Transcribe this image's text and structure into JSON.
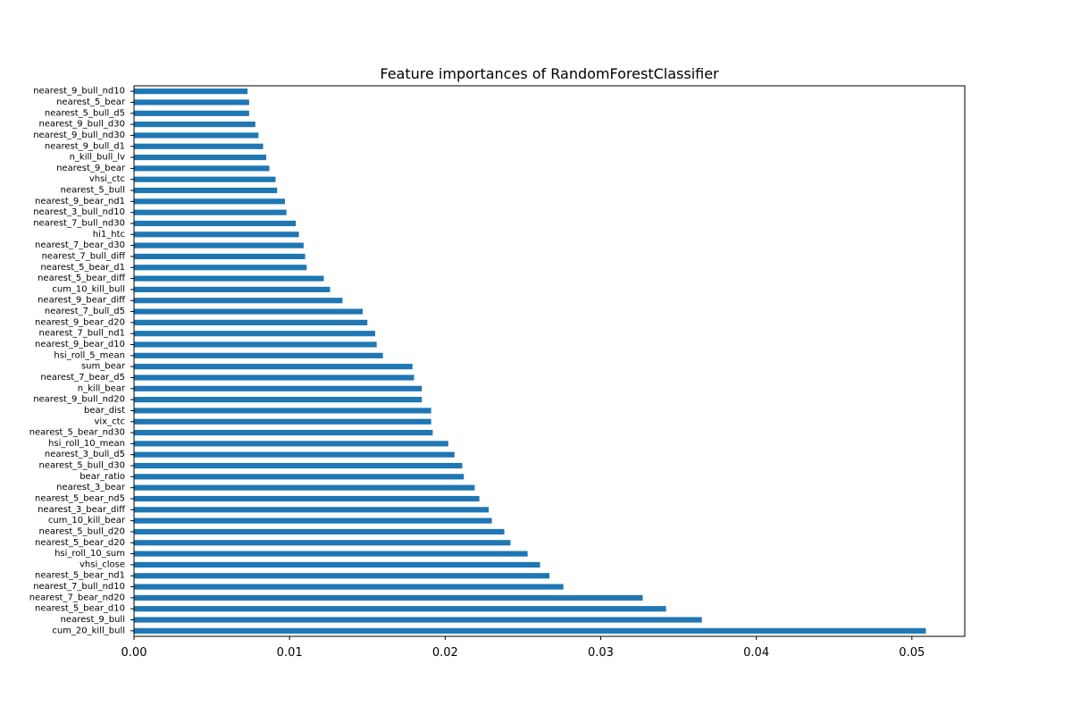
{
  "chart_data": {
    "type": "bar",
    "orientation": "horizontal",
    "title": "Feature importances of RandomForestClassifier",
    "xlabel": "",
    "ylabel": "",
    "xlim": [
      0,
      0.0534
    ],
    "xticks": [
      0.0,
      0.01,
      0.02,
      0.03,
      0.04,
      0.05
    ],
    "xtick_labels": [
      "0.00",
      "0.01",
      "0.02",
      "0.03",
      "0.04",
      "0.05"
    ],
    "bar_color": "#1f77b4",
    "grid": false,
    "categories": [
      "cum_20_kill_bull",
      "nearest_9_bull",
      "nearest_5_bear_d10",
      "nearest_7_bear_nd20",
      "nearest_7_bull_nd10",
      "nearest_5_bear_nd1",
      "vhsi_close",
      "hsi_roll_10_sum",
      "nearest_5_bear_d20",
      "nearest_5_bull_d20",
      "cum_10_kill_bear",
      "nearest_3_bear_diff",
      "nearest_5_bear_nd5",
      "nearest_3_bear",
      "bear_ratio",
      "nearest_5_bull_d30",
      "nearest_3_bull_d5",
      "hsi_roll_10_mean",
      "nearest_5_bear_nd30",
      "vix_ctc",
      "bear_dist",
      "nearest_9_bull_nd20",
      "n_kill_bear",
      "nearest_7_bear_d5",
      "sum_bear",
      "hsi_roll_5_mean",
      "nearest_9_bear_d10",
      "nearest_7_bull_nd1",
      "nearest_9_bear_d20",
      "nearest_7_bull_d5",
      "nearest_9_bear_diff",
      "cum_10_kill_bull",
      "nearest_5_bear_diff",
      "nearest_5_bear_d1",
      "nearest_7_bull_diff",
      "nearest_7_bear_d30",
      "hi1_htc",
      "nearest_7_bull_nd30",
      "nearest_3_bull_nd10",
      "nearest_9_bear_nd1",
      "nearest_5_bull",
      "vhsi_ctc",
      "nearest_9_bear",
      "n_kill_bull_lv",
      "nearest_9_bull_d1",
      "nearest_9_bull_nd30",
      "nearest_9_bull_d30",
      "nearest_5_bull_d5",
      "nearest_5_bear",
      "nearest_9_bull_nd10"
    ],
    "values": [
      0.0509,
      0.0365,
      0.0342,
      0.0327,
      0.0276,
      0.0267,
      0.0261,
      0.0253,
      0.0242,
      0.0238,
      0.023,
      0.0228,
      0.0222,
      0.0219,
      0.0212,
      0.0211,
      0.0206,
      0.0202,
      0.0192,
      0.0191,
      0.0191,
      0.0185,
      0.0185,
      0.018,
      0.0179,
      0.016,
      0.0156,
      0.0155,
      0.015,
      0.0147,
      0.0134,
      0.0126,
      0.0122,
      0.0111,
      0.011,
      0.0109,
      0.0106,
      0.0104,
      0.0098,
      0.0097,
      0.0092,
      0.0091,
      0.0087,
      0.0085,
      0.0083,
      0.008,
      0.0078,
      0.0074,
      0.0074,
      0.0073
    ]
  }
}
